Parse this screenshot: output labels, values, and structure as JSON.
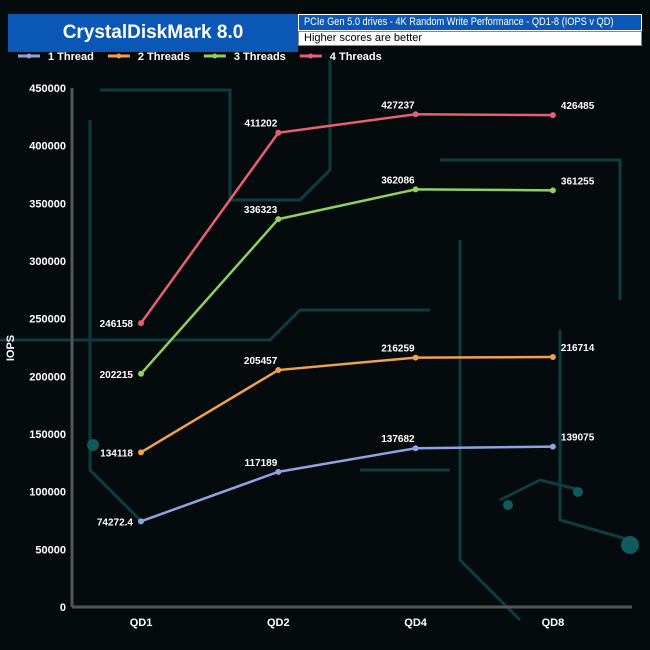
{
  "header": {
    "title": "CrystalDiskMark 8.0",
    "subtitle": "PCIe Gen 5.0 drives - 4K Random Write Performance - QD1-8 (IOPS v QD)",
    "note": "Higher scores are better"
  },
  "chart_data": {
    "type": "line",
    "title": "CrystalDiskMark 8.0",
    "subtitle": "PCIe Gen 5.0 drives - 4K Random Write Performance - QD1-8 (IOPS v QD)",
    "xlabel": "",
    "ylabel": "IOPS",
    "categories": [
      "QD1",
      "QD2",
      "QD4",
      "QD8"
    ],
    "ylim": [
      0,
      450000
    ],
    "yticks": [
      0,
      50000,
      100000,
      150000,
      200000,
      250000,
      300000,
      350000,
      400000,
      450000
    ],
    "legend": "top-left",
    "series": [
      {
        "name": "1 Thread",
        "color": "#8ea3e0",
        "values": [
          74272.4,
          117189,
          137682,
          139075
        ],
        "labels": [
          "74272.4",
          "117189",
          "137682",
          "139075"
        ]
      },
      {
        "name": "2 Threads",
        "color": "#f0a050",
        "values": [
          134118,
          205457,
          216259,
          216714
        ],
        "labels": [
          "134118",
          "205457",
          "216259",
          "216714"
        ]
      },
      {
        "name": "3 Threads",
        "color": "#8fd060",
        "values": [
          202215,
          336323,
          362086,
          361255
        ],
        "labels": [
          "202215",
          "336323",
          "362086",
          "361255"
        ]
      },
      {
        "name": "4 Threads",
        "color": "#e86070",
        "values": [
          246158,
          411202,
          427237,
          426485
        ],
        "labels": [
          "246158",
          "411202",
          "427237",
          "426485"
        ]
      }
    ]
  }
}
